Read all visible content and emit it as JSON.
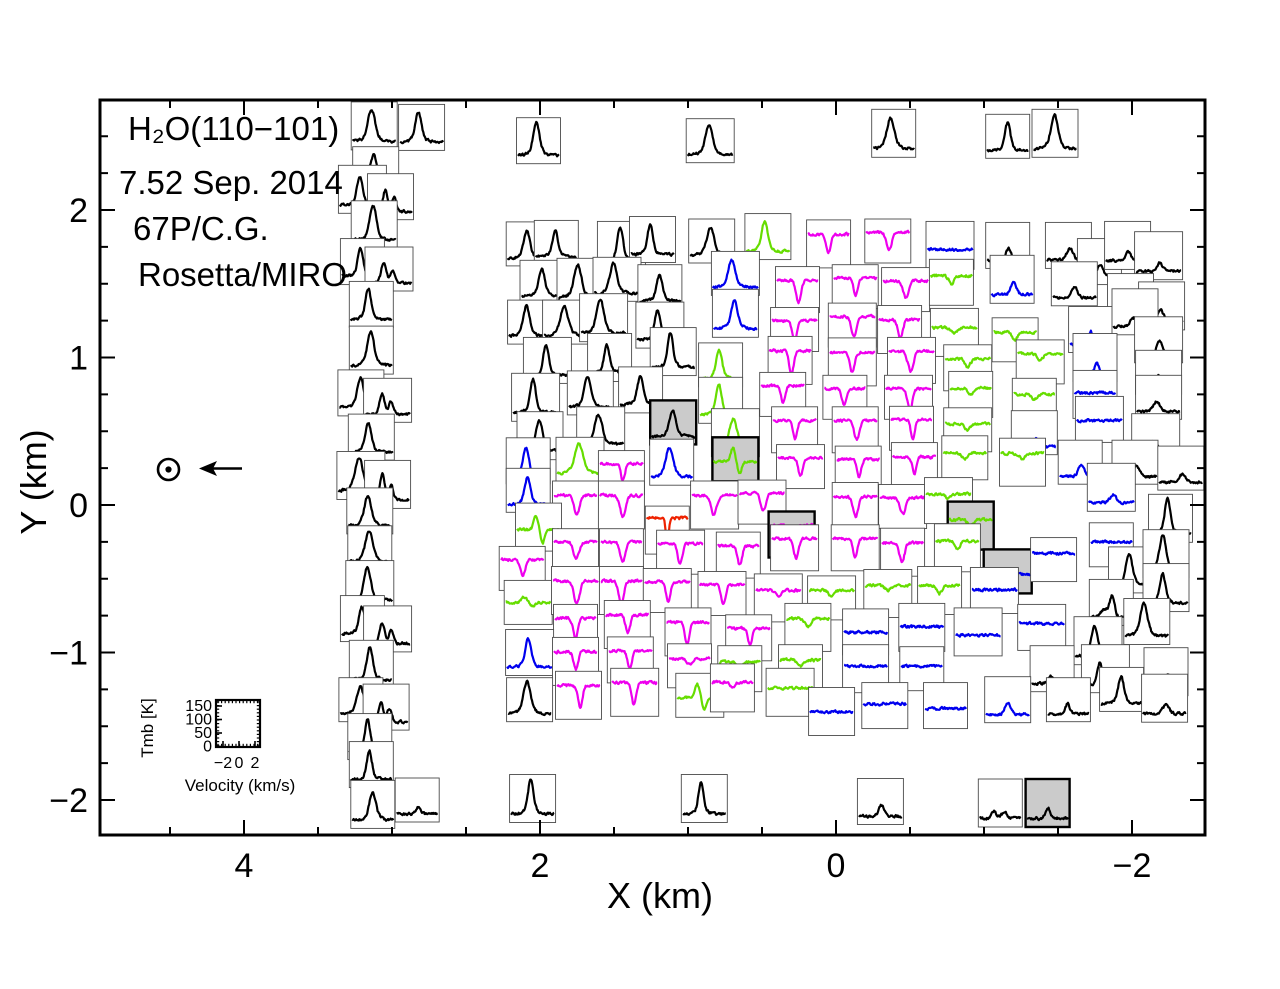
{
  "title_block": {
    "line1": "H₂O(110−101)",
    "line2": "7.52 Sep. 2014",
    "line3": "67P/C.G.",
    "line4": "Rosetta/MIRO"
  },
  "axes": {
    "x_label": "X (km)",
    "y_label": "Y (km)",
    "x_ticks": [
      {
        "v": 4,
        "l": "4"
      },
      {
        "v": 2,
        "l": "2"
      },
      {
        "v": 0,
        "l": "0"
      },
      {
        "v": -2,
        "l": "−2"
      }
    ],
    "y_ticks": [
      {
        "v": 2,
        "l": "2"
      },
      {
        "v": 1,
        "l": "1"
      },
      {
        "v": 0,
        "l": "0"
      },
      {
        "v": -1,
        "l": "−1"
      },
      {
        "v": -2,
        "l": "−2"
      }
    ],
    "x_range_km": [
      4.97,
      -2.49
    ],
    "y_range_km": [
      -2.24,
      2.75
    ],
    "x_minor_step_km": 0.5,
    "y_minor_step_km": 0.25
  },
  "legend": {
    "tmb_label": "Tmb [K]",
    "tmb_ticks": [
      "150",
      "100",
      "50",
      "0"
    ],
    "velocity_ticks": [
      "−2",
      "0",
      "2"
    ],
    "velocity_label": "Velocity (km/s)"
  },
  "annotations": {
    "sun_symbol": {
      "name": "sun-direction-marker",
      "x_km": 4.51,
      "y_km": 0.24,
      "arrow": "left-pointing"
    }
  },
  "colors": {
    "k": "#000000",
    "m": "#ee00ee",
    "g": "#66dd00",
    "b": "#0000ee",
    "r": "#ee2200",
    "gray_fill": "#cbcbcb",
    "box_stroke": "#4a4a4a"
  },
  "chart_data": {
    "type": "spectral_map",
    "description": "Grid of H2O(110-101) line spectra (Tmb vs velocity) mapped at X/Y offsets (km) around comet 67P; each cell: [x_km, y_km, color, profile, gray_highlight]",
    "reference_box": {
      "tmb_ticks_K": [
        150,
        100,
        50,
        0
      ],
      "velocity_ticks_kms": [
        -2,
        0,
        2
      ]
    },
    "spectra_format": [
      "x_km",
      "y_km",
      "color",
      "profile",
      "gray"
    ],
    "spectra": [
      [
        3.12,
        2.57,
        "k",
        "peak"
      ],
      [
        2.8,
        2.56,
        "k",
        "peak"
      ],
      [
        2.01,
        2.47,
        "k",
        "peak"
      ],
      [
        0.85,
        2.47,
        "k",
        "peak"
      ],
      [
        -0.39,
        2.52,
        "k",
        "peak"
      ],
      [
        -1.16,
        2.5,
        "k",
        "peak"
      ],
      [
        -1.48,
        2.52,
        "k",
        "peak"
      ],
      [
        3.11,
        2.28,
        "k",
        "peak"
      ],
      [
        3.2,
        2.14,
        "k",
        "peak"
      ],
      [
        3.01,
        2.09,
        "k",
        "peak2"
      ],
      [
        3.12,
        1.9,
        "k",
        "peak"
      ],
      [
        3.2,
        1.65,
        "k",
        "peak"
      ],
      [
        3.02,
        1.6,
        "k",
        "peak2"
      ],
      [
        3.14,
        1.36,
        "k",
        "peak"
      ],
      [
        3.14,
        1.05,
        "k",
        "peak"
      ],
      [
        3.21,
        0.76,
        "k",
        "peak"
      ],
      [
        3.03,
        0.71,
        "k",
        "peak2"
      ],
      [
        3.14,
        0.46,
        "k",
        "peak"
      ],
      [
        3.21,
        0.2,
        "k",
        "peak"
      ],
      [
        3.03,
        0.14,
        "k",
        "peak2"
      ],
      [
        3.15,
        -0.04,
        "k",
        "peak"
      ],
      [
        3.15,
        -0.29,
        "k",
        "peak"
      ],
      [
        3.15,
        -0.54,
        "k",
        "peak"
      ],
      [
        3.2,
        -0.77,
        "k",
        "peak"
      ],
      [
        3.03,
        -0.84,
        "k",
        "peak2"
      ],
      [
        3.14,
        -1.08,
        "k",
        "peak"
      ],
      [
        3.21,
        -1.32,
        "k",
        "peak"
      ],
      [
        3.04,
        -1.37,
        "k",
        "peak2"
      ],
      [
        3.15,
        -1.57,
        "k",
        "peak"
      ],
      [
        3.14,
        -1.76,
        "k",
        "peak"
      ],
      [
        3.13,
        -2.03,
        "k",
        "peak"
      ],
      [
        2.83,
        -2.0,
        "k",
        "weak-peak"
      ],
      [
        2.08,
        1.77,
        "k",
        "peak"
      ],
      [
        1.89,
        1.78,
        "k",
        "peak"
      ],
      [
        1.45,
        1.76,
        "k",
        "peak"
      ],
      [
        1.24,
        1.8,
        "k",
        "peak"
      ],
      [
        0.84,
        1.79,
        "k",
        "peak"
      ],
      [
        0.46,
        1.82,
        "g",
        "peak"
      ],
      [
        0.05,
        1.77,
        "m",
        "dip"
      ],
      [
        -0.35,
        1.79,
        "m",
        "dip"
      ],
      [
        -0.77,
        1.76,
        "b",
        "flat"
      ],
      [
        -1.16,
        1.76,
        "k",
        "weak-peak"
      ],
      [
        -1.57,
        1.76,
        "k",
        "weak-peak"
      ],
      [
        -1.78,
        1.65,
        "k",
        "weak-peak"
      ],
      [
        -1.97,
        1.76,
        "k",
        "weak-peak"
      ],
      [
        -2.18,
        1.69,
        "k",
        "weak-peak"
      ],
      [
        1.98,
        1.51,
        "k",
        "peak"
      ],
      [
        1.73,
        1.51,
        "k",
        "peak"
      ],
      [
        1.48,
        1.53,
        "k",
        "peak"
      ],
      [
        1.19,
        1.48,
        "k",
        "peak"
      ],
      [
        0.68,
        1.57,
        "b",
        "peak"
      ],
      [
        0.26,
        1.46,
        "m",
        "dip"
      ],
      [
        -0.13,
        1.48,
        "m",
        "dip"
      ],
      [
        -0.47,
        1.46,
        "m",
        "dip"
      ],
      [
        -0.78,
        1.51,
        "g",
        "weak-dip"
      ],
      [
        -1.19,
        1.53,
        "b",
        "weak-peak"
      ],
      [
        -1.61,
        1.5,
        "k",
        "weak-peak"
      ],
      [
        -1.99,
        1.42,
        "k",
        "weak-peak"
      ],
      [
        -2.2,
        1.35,
        "k",
        "weak-peak"
      ],
      [
        2.07,
        1.24,
        "k",
        "peak"
      ],
      [
        1.82,
        1.24,
        "k",
        "peak"
      ],
      [
        1.57,
        1.27,
        "k",
        "peak"
      ],
      [
        1.19,
        1.22,
        "k",
        "peak"
      ],
      [
        0.68,
        1.3,
        "b",
        "peak"
      ],
      [
        0.28,
        1.19,
        "m",
        "dip"
      ],
      [
        -0.11,
        1.22,
        "m",
        "dip"
      ],
      [
        -0.43,
        1.19,
        "m",
        "dip"
      ],
      [
        -0.8,
        1.17,
        "g",
        "weak-dip"
      ],
      [
        -1.21,
        1.12,
        "g",
        "weak-dip"
      ],
      [
        -1.72,
        1.19,
        "b",
        "weak-peak"
      ],
      [
        -2.02,
        1.31,
        "k",
        "weak-peak"
      ],
      [
        -2.18,
        1.12,
        "k",
        "weak-peak"
      ],
      [
        1.95,
        0.98,
        "k",
        "peak"
      ],
      [
        1.53,
        1.0,
        "k",
        "peak"
      ],
      [
        1.1,
        1.04,
        "k",
        "peak"
      ],
      [
        0.78,
        0.95,
        "g",
        "peak"
      ],
      [
        0.31,
        0.98,
        "m",
        "dip"
      ],
      [
        -0.11,
        0.97,
        "m",
        "dip"
      ],
      [
        -0.51,
        0.98,
        "m",
        "dip"
      ],
      [
        -0.89,
        0.93,
        "g",
        "weak-dip"
      ],
      [
        -1.38,
        0.97,
        "g",
        "weak-dip"
      ],
      [
        -1.75,
        1.0,
        "b",
        "weak-peak"
      ],
      [
        -2.18,
        0.9,
        "k",
        "weak-peak"
      ],
      [
        2.03,
        0.73,
        "k",
        "peak"
      ],
      [
        1.66,
        0.76,
        "k",
        "peak"
      ],
      [
        1.32,
        0.78,
        "k",
        "peak"
      ],
      [
        0.78,
        0.71,
        "g",
        "peak"
      ],
      [
        0.36,
        0.75,
        "m",
        "dip"
      ],
      [
        -0.06,
        0.73,
        "m",
        "dip"
      ],
      [
        -0.49,
        0.73,
        "m",
        "dip"
      ],
      [
        -0.91,
        0.75,
        "g",
        "weak-dip"
      ],
      [
        -1.34,
        0.71,
        "g",
        "weak-dip"
      ],
      [
        -1.75,
        0.75,
        "b",
        "flat"
      ],
      [
        -2.18,
        0.73,
        "k",
        "weak-peak"
      ],
      [
        2.0,
        0.47,
        "k",
        "peak"
      ],
      [
        1.59,
        0.51,
        "k",
        "peak"
      ],
      [
        1.1,
        0.56,
        "k",
        "peak",
        1
      ],
      [
        0.68,
        0.49,
        "g",
        "peak"
      ],
      [
        0.28,
        0.51,
        "m",
        "dip"
      ],
      [
        -0.13,
        0.51,
        "m",
        "dip"
      ],
      [
        -0.51,
        0.52,
        "m",
        "dip"
      ],
      [
        -0.89,
        0.51,
        "g",
        "weak-dip"
      ],
      [
        -1.34,
        0.49,
        "b",
        "weak-peak"
      ],
      [
        -1.78,
        0.58,
        "b",
        "flat"
      ],
      [
        -2.16,
        0.47,
        "k",
        "weak-peak"
      ],
      [
        2.08,
        0.3,
        "b",
        "peak"
      ],
      [
        1.73,
        0.31,
        "g",
        "peak"
      ],
      [
        1.45,
        0.22,
        "m",
        "dip"
      ],
      [
        1.11,
        0.29,
        "b",
        "peak"
      ],
      [
        0.68,
        0.31,
        "g",
        "mixed",
        1
      ],
      [
        0.24,
        0.26,
        "m",
        "dip"
      ],
      [
        -0.15,
        0.25,
        "m",
        "dip"
      ],
      [
        -0.53,
        0.26,
        "m",
        "dip"
      ],
      [
        -0.87,
        0.32,
        "g",
        "weak-dip"
      ],
      [
        -1.26,
        0.29,
        "g",
        "weak-dip"
      ],
      [
        -1.65,
        0.29,
        "b",
        "weak-peak"
      ],
      [
        -2.02,
        0.29,
        "k",
        "weak-peak"
      ],
      [
        -2.33,
        0.25,
        "k",
        "weak-peak"
      ],
      [
        2.08,
        0.1,
        "b",
        "peak"
      ],
      [
        1.76,
        0.0,
        "m",
        "dip"
      ],
      [
        1.45,
        0.0,
        "m",
        "dip"
      ],
      [
        1.14,
        -0.17,
        "r",
        "deep-dip"
      ],
      [
        0.82,
        0.0,
        "m",
        "dip"
      ],
      [
        0.5,
        0.02,
        "m",
        "dip"
      ],
      [
        0.3,
        -0.2,
        "m",
        "dip",
        1
      ],
      [
        -0.13,
        -0.01,
        "m",
        "dip"
      ],
      [
        -0.45,
        -0.01,
        "m",
        "dip"
      ],
      [
        -0.76,
        0.03,
        "g",
        "weak-dip"
      ],
      [
        -0.91,
        -0.14,
        "g",
        "weak-dip",
        1
      ],
      [
        -1.86,
        0.12,
        "b",
        "weak-peak"
      ],
      [
        -2.26,
        -0.09,
        "k",
        "peak"
      ],
      [
        2.01,
        -0.15,
        "g",
        "mixed"
      ],
      [
        2.12,
        -0.43,
        "m",
        "dip"
      ],
      [
        1.76,
        -0.31,
        "m",
        "dip"
      ],
      [
        1.45,
        -0.31,
        "m",
        "dip"
      ],
      [
        1.05,
        -0.32,
        "m",
        "dip"
      ],
      [
        0.66,
        -0.34,
        "m",
        "dip"
      ],
      [
        0.28,
        -0.29,
        "m",
        "dip"
      ],
      [
        -0.13,
        -0.29,
        "m",
        "dip"
      ],
      [
        -0.45,
        -0.32,
        "m",
        "dip"
      ],
      [
        -0.82,
        -0.29,
        "g",
        "weak-dip"
      ],
      [
        -1.16,
        -0.45,
        "b",
        "flat",
        1
      ],
      [
        -1.47,
        -0.37,
        "b",
        "flat"
      ],
      [
        -1.86,
        -0.27,
        "b",
        "flat"
      ],
      [
        -1.99,
        -0.44,
        "k",
        "peak"
      ],
      [
        -2.23,
        -0.33,
        "k",
        "peak"
      ],
      [
        2.08,
        -0.66,
        "g",
        "weak-mix"
      ],
      [
        1.76,
        -0.58,
        "m",
        "dip"
      ],
      [
        1.45,
        -0.58,
        "m",
        "dip"
      ],
      [
        1.14,
        -0.58,
        "m",
        "dip"
      ],
      [
        0.77,
        -0.6,
        "m",
        "dip"
      ],
      [
        0.39,
        -0.63,
        "m",
        "weak-dip"
      ],
      [
        0.03,
        -0.63,
        "g",
        "weak-dip"
      ],
      [
        -0.35,
        -0.6,
        "g",
        "weak-dip"
      ],
      [
        -0.7,
        -0.58,
        "g",
        "weak-dip"
      ],
      [
        -1.07,
        -0.58,
        "b",
        "flat"
      ],
      [
        -1.86,
        -0.66,
        "k",
        "peak-wing"
      ],
      [
        -2.23,
        -0.56,
        "k",
        "peak"
      ],
      [
        1.76,
        -0.83,
        "m",
        "dip"
      ],
      [
        1.41,
        -0.81,
        "m",
        "dip"
      ],
      [
        1.0,
        -0.86,
        "m",
        "dip"
      ],
      [
        0.59,
        -0.9,
        "m",
        "dip"
      ],
      [
        0.19,
        -0.83,
        "g",
        "weak-dip"
      ],
      [
        -0.2,
        -0.86,
        "b",
        "flat"
      ],
      [
        -0.58,
        -0.83,
        "b",
        "flat"
      ],
      [
        -0.96,
        -0.86,
        "b",
        "flat"
      ],
      [
        -1.39,
        -0.83,
        "b",
        "flat"
      ],
      [
        -2.1,
        -0.79,
        "k",
        "peak"
      ],
      [
        -1.77,
        -0.92,
        "k",
        "peak"
      ],
      [
        2.07,
        -1.0,
        "b",
        "peak"
      ],
      [
        1.76,
        -1.06,
        "m",
        "dip"
      ],
      [
        1.39,
        -1.05,
        "m",
        "dip"
      ],
      [
        0.99,
        -1.09,
        "m",
        "weak-dip"
      ],
      [
        0.65,
        -1.11,
        "g",
        "weak-dip"
      ],
      [
        0.24,
        -1.11,
        "g",
        "weak-dip"
      ],
      [
        -0.2,
        -1.11,
        "b",
        "flat"
      ],
      [
        -0.58,
        -1.11,
        "b",
        "flat"
      ],
      [
        -1.46,
        -1.11,
        "k",
        "weak-peak"
      ],
      [
        -1.82,
        -1.11,
        "k",
        "peak2"
      ],
      [
        -2.23,
        -1.13,
        "k",
        "weak-peak"
      ],
      [
        2.07,
        -1.32,
        "k",
        "peak"
      ],
      [
        1.74,
        -1.29,
        "m",
        "dip"
      ],
      [
        1.36,
        -1.27,
        "m",
        "dip"
      ],
      [
        0.92,
        -1.29,
        "g",
        "mixed"
      ],
      [
        0.7,
        -1.24,
        "m",
        "weak-dip"
      ],
      [
        0.31,
        -1.27,
        "g",
        "flat"
      ],
      [
        0.03,
        -1.4,
        "b",
        "flat"
      ],
      [
        -0.33,
        -1.36,
        "b",
        "flat"
      ],
      [
        -0.74,
        -1.36,
        "b",
        "flat"
      ],
      [
        -1.16,
        -1.32,
        "b",
        "weak-peak"
      ],
      [
        -1.57,
        -1.32,
        "k",
        "weak-peak"
      ],
      [
        -1.93,
        -1.25,
        "k",
        "peak"
      ],
      [
        -2.22,
        -1.31,
        "k",
        "weak-peak"
      ],
      [
        2.05,
        -1.99,
        "k",
        "peak"
      ],
      [
        0.89,
        -1.99,
        "k",
        "peak"
      ],
      [
        -0.3,
        -2.01,
        "k",
        "weak-peak"
      ],
      [
        -1.11,
        -2.02,
        "k",
        "weak-peak2"
      ],
      [
        -1.43,
        -2.02,
        "k",
        "weak-peak",
        1
      ]
    ]
  }
}
